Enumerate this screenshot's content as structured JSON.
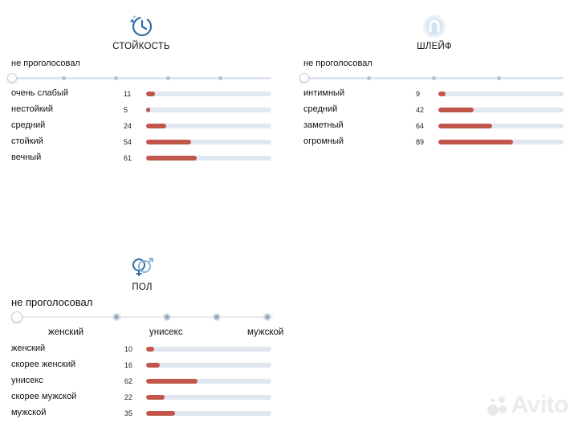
{
  "longevity": {
    "title": "СТОЙКОСТЬ",
    "not_voted": "не проголосовал",
    "rows": [
      {
        "label": "очень слабый",
        "count": "11",
        "value": 11
      },
      {
        "label": "нестойкий",
        "count": "5",
        "value": 5
      },
      {
        "label": "средний",
        "count": "24",
        "value": 24
      },
      {
        "label": "стойкий",
        "count": "54",
        "value": 54
      },
      {
        "label": "вечный",
        "count": "61",
        "value": 61
      }
    ]
  },
  "sillage": {
    "title": "ШЛЕЙФ",
    "not_voted": "не проголосовал",
    "rows": [
      {
        "label": "интимный",
        "count": "9",
        "value": 9
      },
      {
        "label": "средний",
        "count": "42",
        "value": 42
      },
      {
        "label": "заметный",
        "count": "64",
        "value": 64
      },
      {
        "label": "огромный",
        "count": "89",
        "value": 89
      }
    ]
  },
  "gender": {
    "title": "ПОЛ",
    "not_voted": "не проголосовал",
    "scale_labels": {
      "left": "женский",
      "middle": "унисекс",
      "right": "мужской"
    },
    "rows": [
      {
        "label": "женский",
        "count": "10",
        "value": 10
      },
      {
        "label": "скорее женский",
        "count": "16",
        "value": 16
      },
      {
        "label": "унисекс",
        "count": "62",
        "value": 62
      },
      {
        "label": "скорее мужской",
        "count": "22",
        "value": 22
      },
      {
        "label": "мужской",
        "count": "35",
        "value": 35
      }
    ]
  },
  "bar_max": 150,
  "colors": {
    "fill": "#c1564a",
    "track": "#e0e7f0",
    "icon": "#2f6ea5"
  },
  "watermark": {
    "text": "Avito"
  }
}
